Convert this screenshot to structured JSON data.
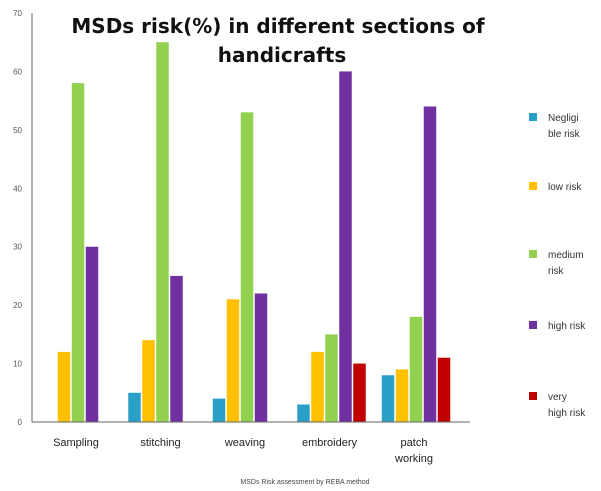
{
  "chart_data": {
    "type": "bar",
    "title": [
      "MSDs risk(%) in different sections of",
      "handicrafts"
    ],
    "xlabel": "MSDs Risk assessment by REBA method",
    "ylabel": "",
    "ylim": [
      0,
      70
    ],
    "yticks": [
      0,
      10,
      20,
      30,
      40,
      50,
      60,
      70
    ],
    "categories": [
      [
        "Sampling"
      ],
      [
        "stitching"
      ],
      [
        "weaving"
      ],
      [
        "embroidery"
      ],
      [
        "patch",
        "working"
      ]
    ],
    "series": [
      {
        "name": [
          "Negligi",
          "ble risk"
        ],
        "color": "#2aa0c8",
        "values": [
          0,
          5,
          4,
          3,
          8
        ]
      },
      {
        "name": [
          "low risk"
        ],
        "color": "#ffc000",
        "values": [
          12,
          14,
          21,
          12,
          9
        ]
      },
      {
        "name": [
          "medium",
          "risk"
        ],
        "color": "#92d050",
        "values": [
          58,
          65,
          53,
          15,
          18
        ]
      },
      {
        "name": [
          "high risk"
        ],
        "color": "#7030a0",
        "values": [
          30,
          25,
          22,
          60,
          54
        ]
      },
      {
        "name": [
          "very",
          "high risk"
        ],
        "color": "#c00000",
        "values": [
          0,
          0,
          0,
          10,
          11
        ]
      }
    ],
    "grid": false,
    "legend": "right"
  }
}
